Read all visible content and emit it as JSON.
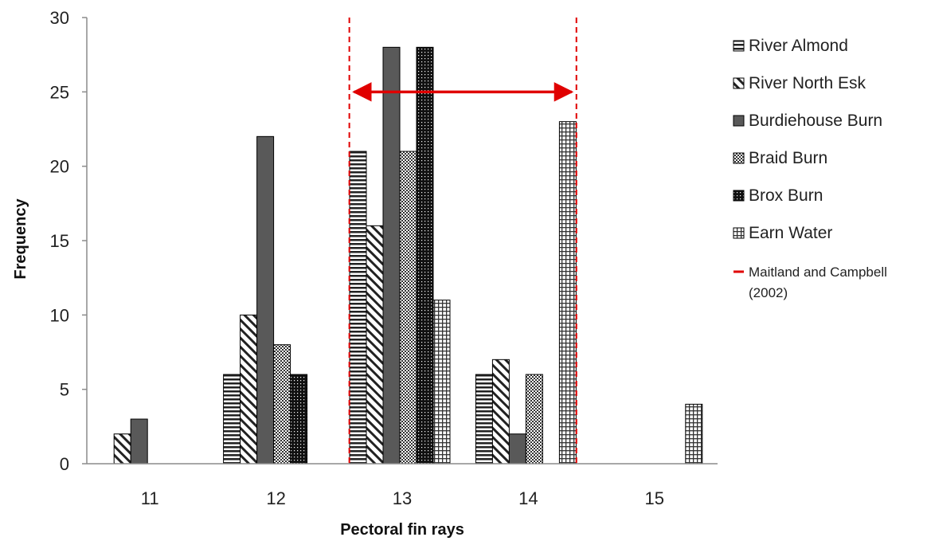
{
  "chart_data": {
    "type": "bar",
    "xlabel": "Pectoral fin rays",
    "ylabel": "Frequency",
    "ylim": [
      0,
      30
    ],
    "yticks": [
      0,
      5,
      10,
      15,
      20,
      25,
      30
    ],
    "categories": [
      "11",
      "12",
      "13",
      "14",
      "15"
    ],
    "series": [
      {
        "name": "River Almond",
        "pattern": "horizontal-lines",
        "values": [
          0,
          6,
          21,
          6,
          0
        ]
      },
      {
        "name": "River North Esk",
        "pattern": "diagonal-lines",
        "values": [
          2,
          10,
          16,
          7,
          0
        ]
      },
      {
        "name": "Burdiehouse Burn",
        "pattern": "solid-gray",
        "color": "#595959",
        "values": [
          3,
          22,
          28,
          2,
          0
        ]
      },
      {
        "name": "Braid Burn",
        "pattern": "dense-checker",
        "values": [
          0,
          8,
          21,
          6,
          0
        ]
      },
      {
        "name": "Brox Burn",
        "pattern": "dark-dots",
        "values": [
          0,
          6,
          28,
          0,
          0
        ]
      },
      {
        "name": "Earn Water",
        "pattern": "grid",
        "values": [
          0,
          0,
          11,
          23,
          4
        ]
      }
    ],
    "reference": {
      "name": "Maitland and Campbell",
      "name_line2": "(2002)",
      "color": "#e00000",
      "style": "dashed",
      "x_start": 12.6,
      "x_end": 14.4,
      "arrow_y": 25
    },
    "grid": false,
    "legend_position": "right"
  }
}
